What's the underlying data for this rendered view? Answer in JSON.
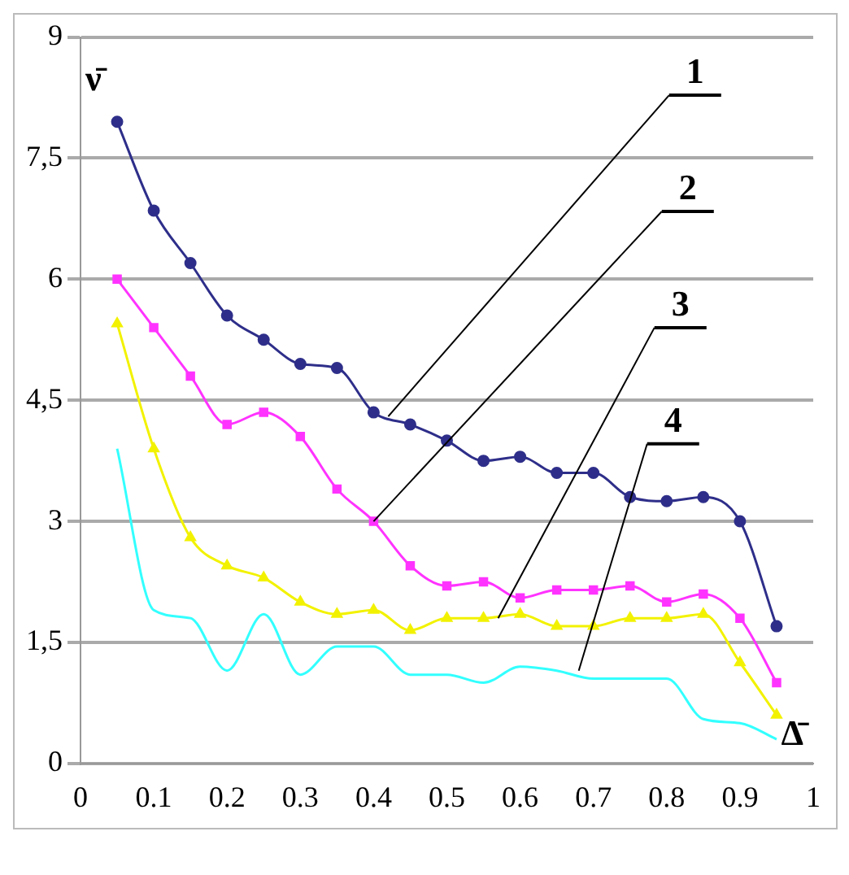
{
  "chart_data": {
    "type": "line",
    "xlabel": "Δ̄",
    "ylabel": "ν̄",
    "x": [
      0.05,
      0.1,
      0.15,
      0.2,
      0.25,
      0.3,
      0.35,
      0.4,
      0.45,
      0.5,
      0.55,
      0.6,
      0.65,
      0.7,
      0.75,
      0.8,
      0.85,
      0.9,
      0.95
    ],
    "series": [
      {
        "color": "#2e2e8a",
        "marker": "circle",
        "values": [
          7.95,
          6.85,
          6.2,
          5.55,
          5.25,
          4.95,
          4.9,
          4.35,
          4.2,
          4.0,
          3.75,
          3.8,
          3.6,
          3.6,
          3.3,
          3.25,
          3.3,
          3.0,
          1.7
        ]
      },
      {
        "color": "#ff33ff",
        "marker": "square",
        "values": [
          6.0,
          5.4,
          4.8,
          4.2,
          4.35,
          4.05,
          3.4,
          3.0,
          2.45,
          2.2,
          2.25,
          2.05,
          2.15,
          2.15,
          2.2,
          2.0,
          2.1,
          1.8,
          1.0
        ]
      },
      {
        "color": "#f2f200",
        "marker": "triangle",
        "values": [
          5.45,
          3.9,
          2.8,
          2.45,
          2.3,
          2.0,
          1.85,
          1.9,
          1.65,
          1.8,
          1.8,
          1.85,
          1.7,
          1.7,
          1.8,
          1.8,
          1.85,
          1.25,
          0.6
        ]
      },
      {
        "color": "#33ffff",
        "marker": "none",
        "values": [
          3.9,
          1.9,
          1.8,
          1.15,
          1.85,
          1.1,
          1.45,
          1.45,
          1.1,
          1.1,
          1.0,
          1.2,
          1.15,
          1.05,
          1.05,
          1.05,
          0.55,
          0.5,
          0.3
        ]
      }
    ],
    "annotations": [
      {
        "text": "1",
        "x": 0.42,
        "y": 4.3
      },
      {
        "text": "2",
        "x": 0.4,
        "y": 3.0
      },
      {
        "text": "3",
        "x": 0.57,
        "y": 1.8
      },
      {
        "text": "4",
        "x": 0.68,
        "y": 1.15
      }
    ],
    "xlim": [
      0,
      1
    ],
    "xticks": [
      0,
      0.1,
      0.2,
      0.3,
      0.4,
      0.5,
      0.6,
      0.7,
      0.8,
      0.9,
      1
    ],
    "ylim": [
      0,
      9
    ],
    "yticks": [
      0,
      {
        "value": 1.5,
        "label": "1,5"
      },
      3,
      {
        "value": 4.5,
        "label": "4,5"
      },
      6,
      {
        "value": 7.5,
        "label": "7,5"
      },
      9
    ],
    "grid": "y",
    "legend": false
  }
}
